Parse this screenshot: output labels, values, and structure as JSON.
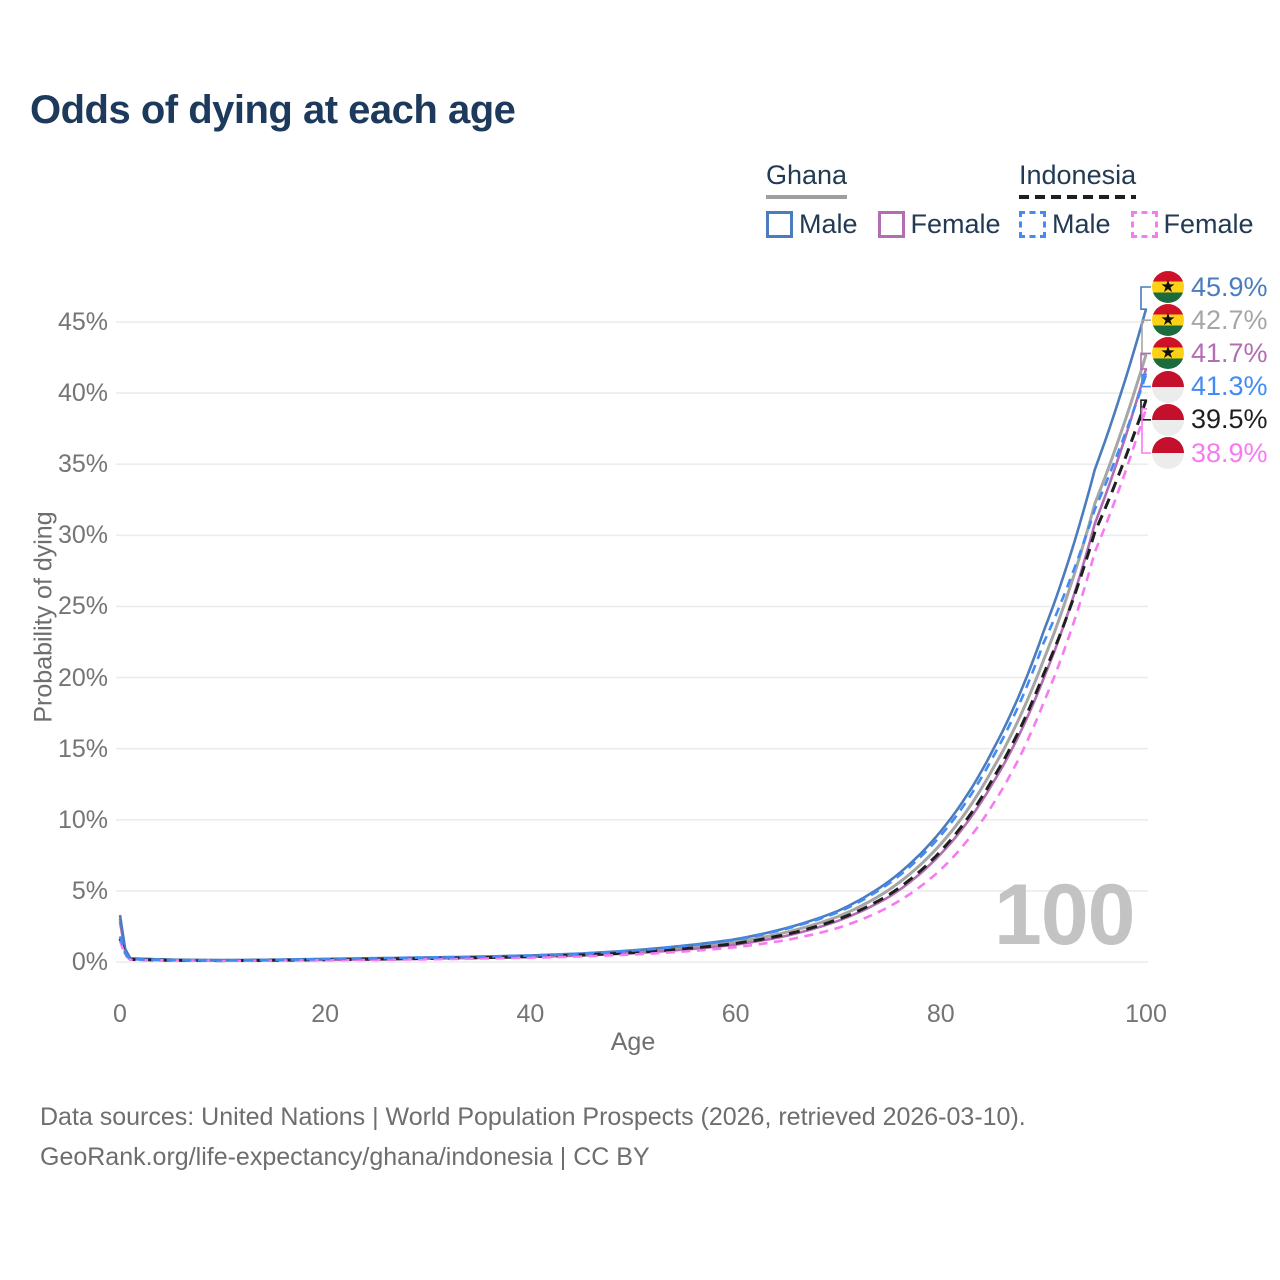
{
  "title": "Odds of dying at each age",
  "watermark": "100",
  "legend": {
    "groups": [
      {
        "id": "ghana",
        "label": "Ghana",
        "line_style": "solid",
        "line_color": "#9e9e9e",
        "items": [
          {
            "id": "ghana-male",
            "label": "Male",
            "color": "#4a7cbe",
            "box_style": "solid"
          },
          {
            "id": "ghana-female",
            "label": "Female",
            "color": "#b26db3",
            "box_style": "solid"
          }
        ]
      },
      {
        "id": "indonesia",
        "label": "Indonesia",
        "line_style": "dashed",
        "line_color": "#1f1f1f",
        "items": [
          {
            "id": "indonesia-male",
            "label": "Male",
            "color": "#428bf5",
            "box_style": "dashed"
          },
          {
            "id": "indonesia-female",
            "label": "Female",
            "color": "#f87af2",
            "box_style": "dashed"
          }
        ]
      }
    ]
  },
  "footer": {
    "line1": "Data sources: United Nations | World Population Prospects (2026, retrieved 2026-03-10).",
    "line2": "GeoRank.org/life-expectancy/ghana/indonesia | CC BY"
  },
  "chart_data": {
    "type": "line",
    "title": "Odds of dying at each age",
    "xlabel": "Age",
    "ylabel": "Probability of dying",
    "xlim": [
      0,
      100
    ],
    "ylim_pct": [
      0,
      47.5
    ],
    "x_ticks": [
      0,
      20,
      40,
      60,
      80,
      100
    ],
    "y_ticks_pct": [
      0,
      5,
      10,
      15,
      20,
      25,
      30,
      35,
      40,
      45
    ],
    "y_tick_suffix": "%",
    "grid": "horizontal",
    "colors": {
      "grid": "#ececec",
      "tick_text": "#757575",
      "watermark": "#c3c3c3"
    },
    "series": [
      {
        "id": "ghana-male",
        "name": "Ghana Male",
        "country": "Ghana",
        "sex": "Male",
        "color": "#4a7cbe",
        "dash": false,
        "aggregate": false,
        "end_value_pct": 45.9,
        "end_label": "45.9%",
        "flag": "ghana",
        "points_age_pct": [
          [
            0,
            3.3
          ],
          [
            1,
            0.26
          ],
          [
            5,
            0.16
          ],
          [
            10,
            0.13
          ],
          [
            15,
            0.16
          ],
          [
            20,
            0.22
          ],
          [
            25,
            0.27
          ],
          [
            30,
            0.32
          ],
          [
            35,
            0.38
          ],
          [
            40,
            0.46
          ],
          [
            45,
            0.6
          ],
          [
            50,
            0.82
          ],
          [
            55,
            1.15
          ],
          [
            60,
            1.6
          ],
          [
            65,
            2.4
          ],
          [
            70,
            3.6
          ],
          [
            75,
            5.7
          ],
          [
            80,
            9.2
          ],
          [
            85,
            14.8
          ],
          [
            90,
            23.2
          ],
          [
            95,
            34.6
          ],
          [
            100,
            45.9
          ]
        ]
      },
      {
        "id": "ghana-total",
        "name": "Ghana",
        "country": "Ghana",
        "sex": "Both",
        "color": "#a6a6a6",
        "dash": false,
        "aggregate": true,
        "end_value_pct": 42.7,
        "end_label": "42.7%",
        "flag": "ghana",
        "points_age_pct": [
          [
            0,
            3.05
          ],
          [
            1,
            0.24
          ],
          [
            5,
            0.15
          ],
          [
            10,
            0.12
          ],
          [
            15,
            0.14
          ],
          [
            20,
            0.19
          ],
          [
            25,
            0.23
          ],
          [
            30,
            0.28
          ],
          [
            35,
            0.33
          ],
          [
            40,
            0.41
          ],
          [
            45,
            0.53
          ],
          [
            50,
            0.72
          ],
          [
            55,
            1.0
          ],
          [
            60,
            1.4
          ],
          [
            65,
            2.1
          ],
          [
            70,
            3.2
          ],
          [
            75,
            5.1
          ],
          [
            80,
            8.3
          ],
          [
            85,
            13.5
          ],
          [
            90,
            21.2
          ],
          [
            95,
            32.2
          ],
          [
            100,
            42.7
          ]
        ]
      },
      {
        "id": "ghana-female",
        "name": "Ghana Female",
        "country": "Ghana",
        "sex": "Female",
        "color": "#b26db3",
        "dash": false,
        "aggregate": false,
        "end_value_pct": 41.7,
        "end_label": "41.7%",
        "flag": "ghana",
        "points_age_pct": [
          [
            0,
            2.8
          ],
          [
            1,
            0.22
          ],
          [
            5,
            0.13
          ],
          [
            10,
            0.11
          ],
          [
            15,
            0.12
          ],
          [
            20,
            0.15
          ],
          [
            25,
            0.19
          ],
          [
            30,
            0.24
          ],
          [
            35,
            0.29
          ],
          [
            40,
            0.36
          ],
          [
            45,
            0.46
          ],
          [
            50,
            0.62
          ],
          [
            55,
            0.87
          ],
          [
            60,
            1.22
          ],
          [
            65,
            1.85
          ],
          [
            70,
            2.9
          ],
          [
            75,
            4.6
          ],
          [
            80,
            7.6
          ],
          [
            85,
            12.5
          ],
          [
            90,
            19.9
          ],
          [
            95,
            30.8
          ],
          [
            100,
            41.7
          ]
        ]
      },
      {
        "id": "indonesia-male",
        "name": "Indonesia Male",
        "country": "Indonesia",
        "sex": "Male",
        "color": "#428bf5",
        "dash": true,
        "aggregate": false,
        "end_value_pct": 41.3,
        "end_label": "41.3%",
        "flag": "indonesia",
        "points_age_pct": [
          [
            0,
            1.8
          ],
          [
            1,
            0.2
          ],
          [
            5,
            0.13
          ],
          [
            10,
            0.11
          ],
          [
            15,
            0.15
          ],
          [
            20,
            0.21
          ],
          [
            25,
            0.26
          ],
          [
            30,
            0.31
          ],
          [
            35,
            0.37
          ],
          [
            40,
            0.45
          ],
          [
            45,
            0.59
          ],
          [
            50,
            0.8
          ],
          [
            55,
            1.12
          ],
          [
            60,
            1.56
          ],
          [
            65,
            2.35
          ],
          [
            70,
            3.5
          ],
          [
            75,
            5.55
          ],
          [
            80,
            8.9
          ],
          [
            85,
            14.3
          ],
          [
            90,
            22.4
          ],
          [
            95,
            31.8
          ],
          [
            100,
            41.3
          ]
        ]
      },
      {
        "id": "indonesia-total",
        "name": "Indonesia",
        "country": "Indonesia",
        "sex": "Both",
        "color": "#1f1f1f",
        "dash": true,
        "aggregate": true,
        "end_value_pct": 39.5,
        "end_label": "39.5%",
        "flag": "indonesia",
        "points_age_pct": [
          [
            0,
            1.65
          ],
          [
            1,
            0.18
          ],
          [
            5,
            0.12
          ],
          [
            10,
            0.1
          ],
          [
            15,
            0.12
          ],
          [
            20,
            0.16
          ],
          [
            25,
            0.2
          ],
          [
            30,
            0.25
          ],
          [
            35,
            0.3
          ],
          [
            40,
            0.38
          ],
          [
            45,
            0.49
          ],
          [
            50,
            0.66
          ],
          [
            55,
            0.93
          ],
          [
            60,
            1.3
          ],
          [
            65,
            1.95
          ],
          [
            70,
            3.0
          ],
          [
            75,
            4.75
          ],
          [
            80,
            7.8
          ],
          [
            85,
            12.8
          ],
          [
            90,
            20.2
          ],
          [
            95,
            30.2
          ],
          [
            100,
            39.5
          ]
        ]
      },
      {
        "id": "indonesia-female",
        "name": "Indonesia Female",
        "country": "Indonesia",
        "sex": "Female",
        "color": "#f87af2",
        "dash": true,
        "aggregate": false,
        "end_value_pct": 38.9,
        "end_label": "38.9%",
        "flag": "indonesia",
        "points_age_pct": [
          [
            0,
            1.5
          ],
          [
            1,
            0.16
          ],
          [
            5,
            0.11
          ],
          [
            10,
            0.09
          ],
          [
            15,
            0.1
          ],
          [
            20,
            0.12
          ],
          [
            25,
            0.15
          ],
          [
            30,
            0.19
          ],
          [
            35,
            0.24
          ],
          [
            40,
            0.3
          ],
          [
            45,
            0.39
          ],
          [
            50,
            0.53
          ],
          [
            55,
            0.74
          ],
          [
            60,
            1.04
          ],
          [
            65,
            1.55
          ],
          [
            70,
            2.4
          ],
          [
            75,
            3.9
          ],
          [
            80,
            6.5
          ],
          [
            85,
            11.0
          ],
          [
            90,
            18.2
          ],
          [
            95,
            28.8
          ],
          [
            100,
            38.9
          ]
        ]
      }
    ]
  }
}
